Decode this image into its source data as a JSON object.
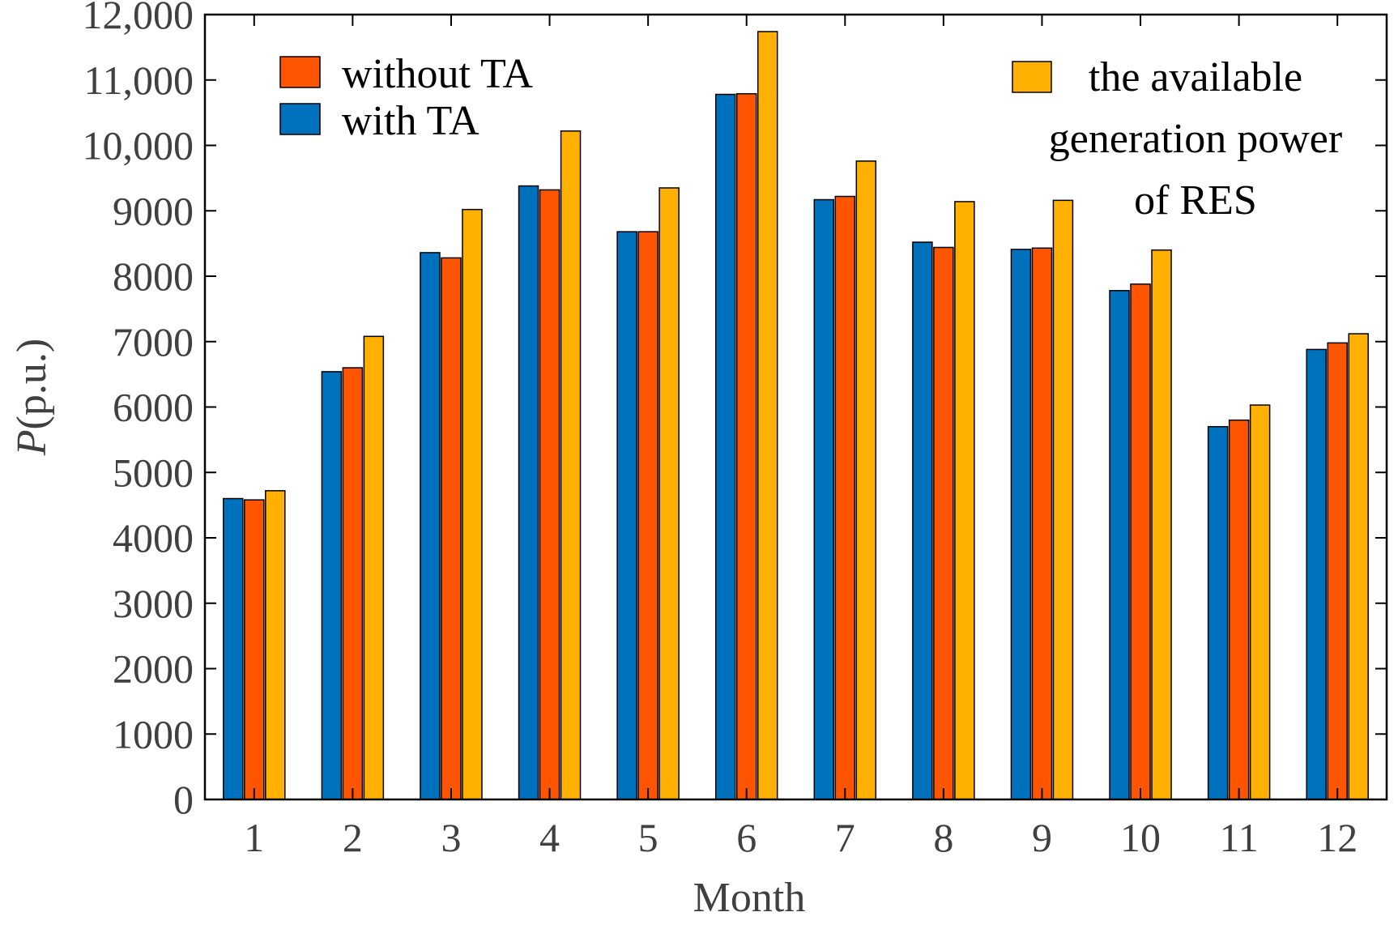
{
  "chart_data": {
    "type": "bar",
    "title": "",
    "xlabel": "Month",
    "ylabel_italic": "P",
    "ylabel_rest": "(p.u.)",
    "ylim": [
      0,
      12000
    ],
    "yticks": [
      0,
      1000,
      2000,
      3000,
      4000,
      5000,
      6000,
      7000,
      8000,
      9000,
      10000,
      11000,
      12000
    ],
    "ytick_labels": [
      "0",
      "1000",
      "2000",
      "3000",
      "4000",
      "5000",
      "6000",
      "7000",
      "8000",
      "9000",
      "10,000",
      "11,000",
      "12,000"
    ],
    "categories": [
      "1",
      "2",
      "3",
      "4",
      "5",
      "6",
      "7",
      "8",
      "9",
      "10",
      "11",
      "12"
    ],
    "series": [
      {
        "name": "with TA",
        "color": "#0072BD",
        "values": [
          4600,
          6540,
          8360,
          9380,
          8680,
          10780,
          9170,
          8520,
          8410,
          7780,
          5700,
          6880
        ]
      },
      {
        "name": "without TA",
        "color": "#FF5500",
        "values": [
          4580,
          6600,
          8280,
          9320,
          8680,
          10790,
          9220,
          8440,
          8430,
          7880,
          5800,
          6980
        ]
      },
      {
        "name": "the available generation power of RES",
        "color": "#FFB000",
        "values": [
          4720,
          7080,
          9020,
          10220,
          9350,
          11740,
          9760,
          9140,
          9160,
          8400,
          6030,
          7120
        ]
      }
    ],
    "legend_left": [
      {
        "label": "without TA",
        "color": "#FF5500"
      },
      {
        "label": "with TA",
        "color": "#0072BD"
      }
    ],
    "legend_right": {
      "color": "#FFB000",
      "lines": [
        "the available",
        "generation power",
        "of RES"
      ]
    },
    "grid": false
  }
}
